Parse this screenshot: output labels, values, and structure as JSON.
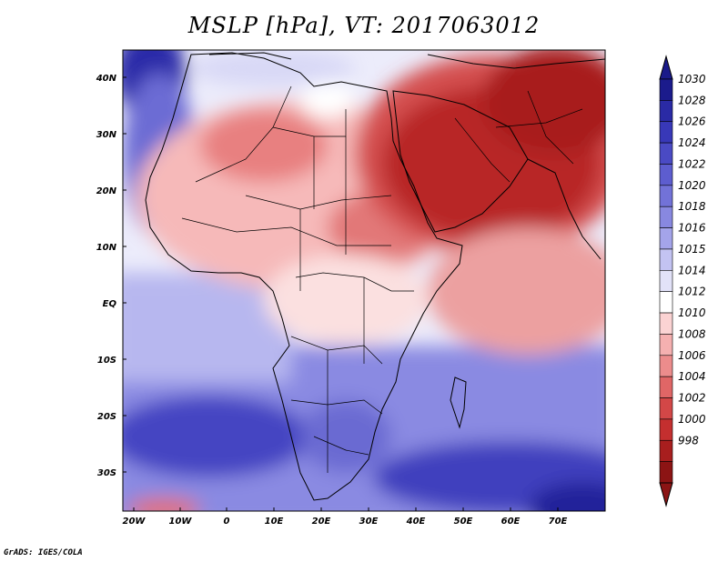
{
  "title": "MSLP [hPa], VT: 2017063012",
  "credit": "GrADS: IGES/COLA",
  "map": {
    "region": "Africa and Middle East",
    "lat_labels": [
      "40N",
      "30N",
      "20N",
      "10N",
      "EQ",
      "10S",
      "20S",
      "30S"
    ],
    "lon_labels": [
      "20W",
      "10W",
      "0",
      "10E",
      "20E",
      "30E",
      "40E",
      "50E",
      "60E",
      "70E"
    ]
  },
  "colorbar": {
    "levels": [
      "1030",
      "1028",
      "1026",
      "1024",
      "1022",
      "1020",
      "1018",
      "1016",
      "1015",
      "1014",
      "1012",
      "1010",
      "1008",
      "1006",
      "1004",
      "1002",
      "1000",
      "998"
    ],
    "colors": [
      "#1b1b8c",
      "#2a2aa5",
      "#3838b8",
      "#4a4ac4",
      "#5d5dcf",
      "#7272d8",
      "#8888e0",
      "#a4a4ea",
      "#c3c3f2",
      "#e2e2f8",
      "#ffffff",
      "#fbd3d3",
      "#f5b0b0",
      "#ec8c8c",
      "#e06666",
      "#d34747",
      "#c42f2f",
      "#a81e1e",
      "#8c1414"
    ],
    "max_color": "#1a1a8a",
    "min_color": "#8b1414"
  }
}
